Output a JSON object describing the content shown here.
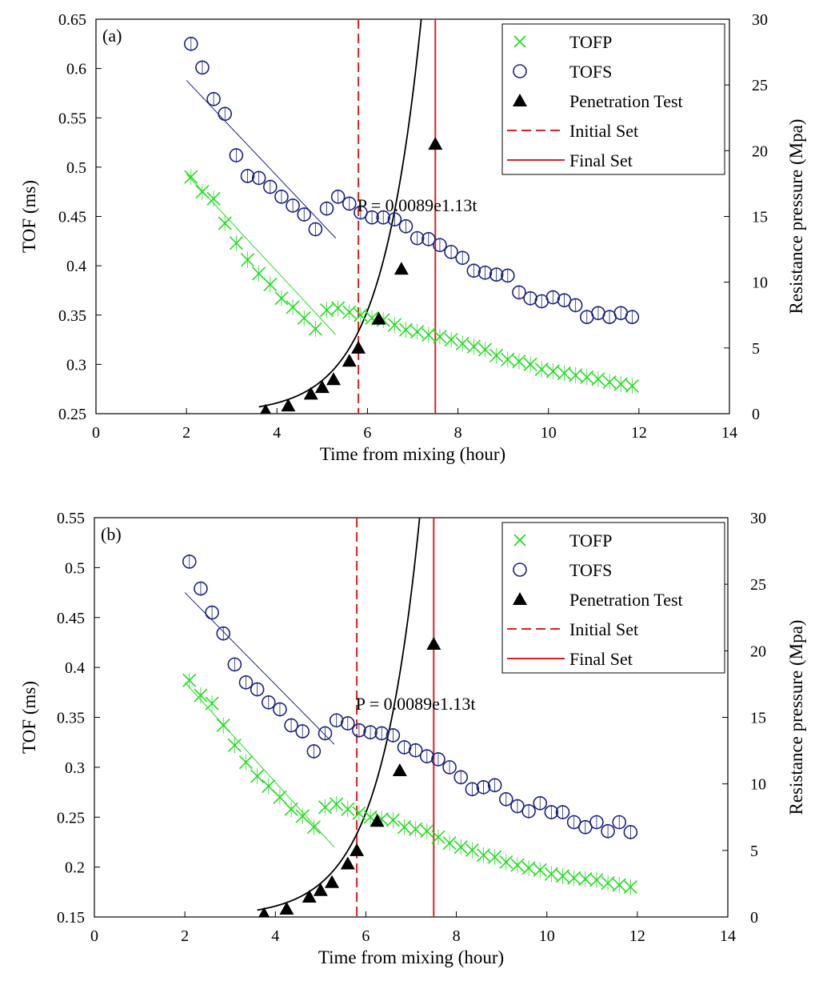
{
  "chart_data": [
    {
      "type": "scatter",
      "panel_label": "(a)",
      "xlabel": "Time from mixing (hour)",
      "ylabel": "TOF (ms)",
      "y2label": "Resistance pressure (Mpa)",
      "xlim": [
        0,
        14
      ],
      "ylim": [
        0.25,
        0.65
      ],
      "y2lim": [
        0,
        30
      ],
      "x_ticks": [
        0,
        2,
        4,
        6,
        8,
        10,
        12,
        14
      ],
      "y_ticks": [
        0.25,
        0.3,
        0.35,
        0.4,
        0.45,
        0.5,
        0.55,
        0.6,
        0.65
      ],
      "y2_ticks": [
        0,
        5,
        10,
        15,
        20,
        25,
        30
      ],
      "grid": false,
      "legend_position": "top-right",
      "legend": [
        "TOFP",
        "TOFS",
        "Penetration Test",
        "Initial Set",
        "Final Set"
      ],
      "annotation": "P = 0.0089e1.13t",
      "initial_set": 5.8,
      "final_set": 7.5,
      "fit_equation": {
        "a": 0.0089,
        "b": 1.13
      },
      "series": [
        {
          "name": "TOFP",
          "marker": "x",
          "color": "#22dd22",
          "axis": "left",
          "x": [
            2.1,
            2.35,
            2.6,
            2.85,
            3.1,
            3.35,
            3.6,
            3.85,
            4.1,
            4.35,
            4.6,
            4.85,
            5.1,
            5.35,
            5.6,
            5.85,
            6.1,
            6.35,
            6.6,
            6.85,
            7.1,
            7.35,
            7.6,
            7.85,
            8.1,
            8.35,
            8.6,
            8.85,
            9.1,
            9.35,
            9.6,
            9.85,
            10.1,
            10.35,
            10.6,
            10.85,
            11.1,
            11.35,
            11.6,
            11.85
          ],
          "y": [
            0.49,
            0.475,
            0.468,
            0.443,
            0.423,
            0.406,
            0.392,
            0.381,
            0.367,
            0.358,
            0.347,
            0.336,
            0.355,
            0.357,
            0.353,
            0.35,
            0.347,
            0.345,
            0.34,
            0.335,
            0.333,
            0.33,
            0.328,
            0.325,
            0.321,
            0.318,
            0.315,
            0.309,
            0.305,
            0.303,
            0.3,
            0.295,
            0.293,
            0.291,
            0.289,
            0.287,
            0.285,
            0.282,
            0.28,
            0.278
          ]
        },
        {
          "name": "TOFS",
          "marker": "o",
          "color": "#1a237e",
          "axis": "left",
          "x": [
            2.1,
            2.35,
            2.6,
            2.85,
            3.1,
            3.35,
            3.6,
            3.85,
            4.1,
            4.35,
            4.6,
            4.85,
            5.1,
            5.35,
            5.6,
            5.85,
            6.1,
            6.35,
            6.6,
            6.85,
            7.1,
            7.35,
            7.6,
            7.85,
            8.1,
            8.35,
            8.6,
            8.85,
            9.1,
            9.35,
            9.6,
            9.85,
            10.1,
            10.35,
            10.6,
            10.85,
            11.1,
            11.35,
            11.6,
            11.85
          ],
          "y": [
            0.625,
            0.601,
            0.569,
            0.554,
            0.512,
            0.491,
            0.489,
            0.48,
            0.47,
            0.461,
            0.452,
            0.437,
            0.458,
            0.47,
            0.463,
            0.454,
            0.449,
            0.449,
            0.447,
            0.44,
            0.428,
            0.427,
            0.421,
            0.414,
            0.408,
            0.395,
            0.393,
            0.391,
            0.39,
            0.373,
            0.367,
            0.364,
            0.368,
            0.365,
            0.36,
            0.348,
            0.352,
            0.348,
            0.352,
            0.348
          ]
        },
        {
          "name": "Penetration Test",
          "marker": "triangle",
          "color": "#000000",
          "axis": "right",
          "x": [
            3.75,
            4.25,
            4.75,
            5.0,
            5.25,
            5.6,
            5.8,
            6.25,
            6.75,
            7.5
          ],
          "y": [
            0.2,
            0.6,
            1.5,
            2.0,
            2.6,
            4.0,
            5.0,
            7.2,
            11.0,
            20.5
          ]
        }
      ],
      "trend_lines": [
        {
          "series": "TOFP",
          "x": [
            2.0,
            5.3
          ],
          "y": [
            0.493,
            0.33
          ]
        },
        {
          "series": "TOFS",
          "x": [
            2.0,
            5.3
          ],
          "y": [
            0.588,
            0.428
          ]
        }
      ]
    },
    {
      "type": "scatter",
      "panel_label": "(b)",
      "xlabel": "Time from mixing (hour)",
      "ylabel": "TOF (ms)",
      "y2label": "Resistance pressure (Mpa)",
      "xlim": [
        0,
        14
      ],
      "ylim": [
        0.15,
        0.55
      ],
      "y2lim": [
        0,
        30
      ],
      "x_ticks": [
        0,
        2,
        4,
        6,
        8,
        10,
        12,
        14
      ],
      "y_ticks": [
        0.15,
        0.2,
        0.25,
        0.3,
        0.35,
        0.4,
        0.45,
        0.5,
        0.55
      ],
      "y2_ticks": [
        0,
        5,
        10,
        15,
        20,
        25,
        30
      ],
      "grid": false,
      "legend_position": "top-right",
      "legend": [
        "TOFP",
        "TOFS",
        "Penetration Test",
        "Initial Set",
        "Final Set"
      ],
      "annotation": "P = 0.0089e1.13t",
      "initial_set": 5.8,
      "final_set": 7.5,
      "fit_equation": {
        "a": 0.0089,
        "b": 1.13
      },
      "series": [
        {
          "name": "TOFP",
          "marker": "x",
          "color": "#22dd22",
          "axis": "left",
          "x": [
            2.1,
            2.35,
            2.6,
            2.85,
            3.1,
            3.35,
            3.6,
            3.85,
            4.1,
            4.35,
            4.6,
            4.85,
            5.1,
            5.35,
            5.6,
            5.85,
            6.1,
            6.35,
            6.6,
            6.85,
            7.1,
            7.35,
            7.6,
            7.85,
            8.1,
            8.35,
            8.6,
            8.85,
            9.1,
            9.35,
            9.6,
            9.85,
            10.1,
            10.35,
            10.6,
            10.85,
            11.1,
            11.35,
            11.6,
            11.85
          ],
          "y": [
            0.387,
            0.372,
            0.364,
            0.342,
            0.322,
            0.305,
            0.291,
            0.281,
            0.27,
            0.258,
            0.251,
            0.24,
            0.26,
            0.263,
            0.258,
            0.254,
            0.25,
            0.248,
            0.247,
            0.24,
            0.238,
            0.236,
            0.23,
            0.224,
            0.22,
            0.217,
            0.212,
            0.21,
            0.205,
            0.202,
            0.199,
            0.197,
            0.193,
            0.191,
            0.189,
            0.188,
            0.187,
            0.184,
            0.182,
            0.18
          ]
        },
        {
          "name": "TOFS",
          "marker": "o",
          "color": "#1a237e",
          "axis": "left",
          "x": [
            2.1,
            2.35,
            2.6,
            2.85,
            3.1,
            3.35,
            3.6,
            3.85,
            4.1,
            4.35,
            4.6,
            4.85,
            5.1,
            5.35,
            5.6,
            5.85,
            6.1,
            6.35,
            6.6,
            6.85,
            7.1,
            7.35,
            7.6,
            7.85,
            8.1,
            8.35,
            8.6,
            8.85,
            9.1,
            9.35,
            9.6,
            9.85,
            10.1,
            10.35,
            10.6,
            10.85,
            11.1,
            11.35,
            11.6,
            11.85
          ],
          "y": [
            0.506,
            0.479,
            0.455,
            0.434,
            0.403,
            0.385,
            0.378,
            0.365,
            0.358,
            0.342,
            0.336,
            0.316,
            0.334,
            0.347,
            0.344,
            0.337,
            0.335,
            0.334,
            0.332,
            0.32,
            0.317,
            0.311,
            0.308,
            0.3,
            0.29,
            0.278,
            0.28,
            0.282,
            0.268,
            0.261,
            0.256,
            0.264,
            0.255,
            0.255,
            0.245,
            0.24,
            0.245,
            0.236,
            0.245,
            0.235
          ]
        },
        {
          "name": "Penetration Test",
          "marker": "triangle",
          "color": "#000000",
          "axis": "right",
          "x": [
            3.75,
            4.25,
            4.75,
            5.0,
            5.25,
            5.6,
            5.8,
            6.25,
            6.75,
            7.5
          ],
          "y": [
            0.2,
            0.6,
            1.5,
            2.0,
            2.6,
            4.0,
            5.0,
            7.2,
            11.0,
            20.5
          ]
        }
      ],
      "trend_lines": [
        {
          "series": "TOFP",
          "x": [
            2.0,
            5.3
          ],
          "y": [
            0.385,
            0.22
          ]
        },
        {
          "series": "TOFS",
          "x": [
            2.0,
            5.3
          ],
          "y": [
            0.475,
            0.323
          ]
        }
      ]
    }
  ]
}
